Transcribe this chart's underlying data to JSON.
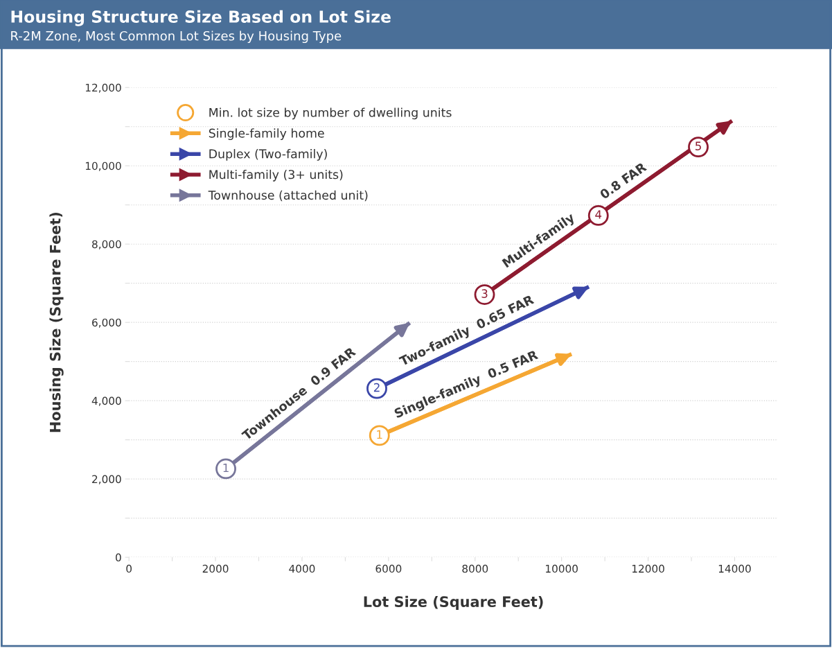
{
  "chart_data": {
    "type": "line",
    "title": "Housing Structure Size Based on Lot Size",
    "subtitle": "R-2M Zone, Most Common Lot Sizes by Housing Type",
    "xlabel": "Lot Size (Square Feet)",
    "ylabel": "Housing Size (Square Feet)",
    "series": [
      {
        "name": "Min. lot size by number of dwelling units",
        "type": "scatter",
        "color": "#f5a733",
        "colors": [
          "#f5a733",
          "#3a46a8",
          "#8e1b30",
          "#8e1b30",
          "#8e1b30",
          "#77769a"
        ],
        "x": [
          5790,
          5730,
          8220,
          10850,
          13160,
          2240
        ],
        "values": [
          3110,
          4310,
          6710,
          8730,
          10480,
          2260
        ]
      },
      {
        "name": "Single-family home",
        "color": "#f5a733",
        "x": [
          5790,
          10230
        ],
        "values": [
          3110,
          5190
        ]
      },
      {
        "name": "Duplex (Two-family)",
        "color": "#3a46a8",
        "x": [
          5730,
          10630
        ],
        "values": [
          4310,
          6910
        ]
      },
      {
        "name": "Multi-family (3+ units)",
        "color": "#8e1b30",
        "x": [
          8220,
          13940
        ],
        "values": [
          6710,
          11150
        ]
      },
      {
        "name": "Townhouse (attached unit)",
        "color": "#77769a",
        "x": [
          2240,
          6490
        ],
        "values": [
          2260,
          5990
        ]
      }
    ],
    "annotations": [
      {
        "text": "Townhouse  0.9 FAR",
        "x": 4120,
        "y": 3910
      },
      {
        "text": "Two-family  0.65 FAR",
        "x": 7940,
        "y": 5483
      },
      {
        "text": "Single-family  0.5 FAR",
        "x": 7910,
        "y": 4103
      },
      {
        "text": "Multi-family",
        "x": 9640,
        "y": 7812
      },
      {
        "text": "0.8 FAR",
        "x": 11600,
        "y": 9334
      },
      {
        "text": "1",
        "x": 5790,
        "y": 3110
      },
      {
        "text": "2",
        "x": 5730,
        "y": 4310
      },
      {
        "text": "3",
        "x": 8220,
        "y": 6710
      },
      {
        "text": "4",
        "x": 10850,
        "y": 8730
      },
      {
        "text": "5",
        "x": 13160,
        "y": 10480
      },
      {
        "text": "1",
        "x": 2240,
        "y": 2260
      }
    ],
    "xlim": [
      0,
      15000
    ],
    "xticks": [
      0,
      {
        "value": 1000,
        "label": null
      },
      2000,
      {
        "value": 3000,
        "label": null
      },
      4000,
      {
        "value": 5000,
        "label": null
      },
      6000,
      {
        "value": 7000,
        "label": null
      },
      8000,
      {
        "value": 9000,
        "label": null
      },
      10000,
      {
        "value": 11000,
        "label": null
      },
      12000,
      {
        "value": 13000,
        "label": null
      },
      14000
    ],
    "ylim": [
      0,
      12000
    ],
    "yticks": [
      {
        "value": 0,
        "label": "0"
      },
      {
        "value": 1000,
        "label": null
      },
      {
        "value": 2000,
        "label": "2,000"
      },
      {
        "value": 3000,
        "label": null
      },
      {
        "value": 4000,
        "label": "4,000"
      },
      {
        "value": 5000,
        "label": null
      },
      {
        "value": 6000,
        "label": "6,000"
      },
      {
        "value": 7000,
        "label": null
      },
      {
        "value": 8000,
        "label": "8,000"
      },
      {
        "value": 9000,
        "label": null
      },
      {
        "value": 10000,
        "label": "10,000"
      },
      {
        "value": 11000,
        "label": null
      },
      {
        "value": 12000,
        "label": "12,000"
      }
    ],
    "grid": "y",
    "legend": "top left"
  }
}
